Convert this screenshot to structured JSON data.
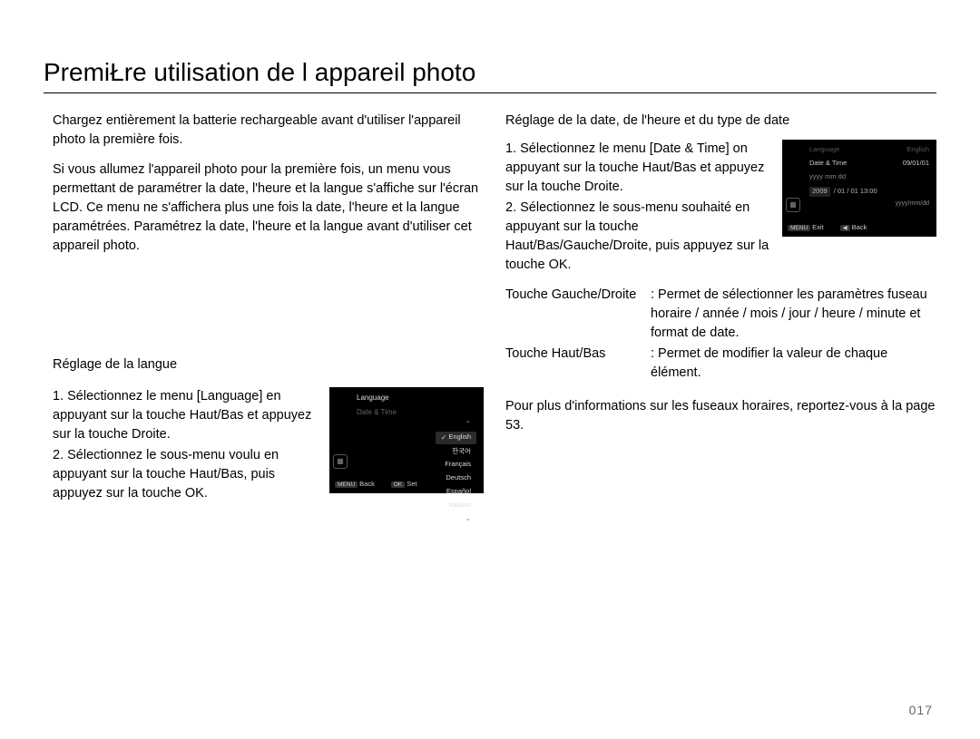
{
  "title": "PremiŁre utilisation de l appareil photo",
  "page_number": "017",
  "left": {
    "intro1": "Chargez entièrement la batterie rechargeable avant d'utiliser l'appareil photo la première fois.",
    "intro2": "Si vous allumez l'appareil photo pour la première fois, un menu vous permettant de paramétrer la date, l'heure et la langue s'affiche sur l'écran LCD. Ce menu ne s'affichera plus une fois la date, l'heure et la langue paramétrées. Paramétrez la date, l'heure et la langue avant d'utiliser cet appareil photo.",
    "subhead": "Réglage de la langue",
    "step1": "1. Sélectionnez le menu [Language] en appuyant sur la touche Haut/Bas et appuyez sur la touche Droite.",
    "step2": "2. Sélectionnez le sous-menu voulu en appuyant sur la touche Haut/Bas, puis appuyez sur la touche OK."
  },
  "right": {
    "subhead": "Réglage de la date, de l'heure et du type de date",
    "step1": "1. Sélectionnez le menu [Date & Time] on appuyant sur la touche Haut/Bas et appuyez sur la touche Droite.",
    "step2": "2. Sélectionnez le sous-menu souhaité en appuyant sur la touche Haut/Bas/Gauche/Droite, puis appuyez sur la touche OK.",
    "def1_label": "Touche Gauche/Droite",
    "def1_val": ": Permet de sélectionner les paramètres fuseau horaire / année / mois / jour / heure / minute et format de date.",
    "def2_label": "Touche Haut/Bas",
    "def2_val": ": Permet de modifier la valeur de chaque élément.",
    "closing": "Pour plus d'informations sur les fuseaux horaires, reportez-vous à la page 53."
  },
  "lcd_lang": {
    "menu_language": "Language",
    "menu_datetime": "Date & Time",
    "opts": {
      "english": "English",
      "korean": "한국어",
      "francais": "Français",
      "deutsch": "Deutsch",
      "espanol": "Español",
      "italiano": "Italiano"
    },
    "footer_back": "Back",
    "footer_set": "Set",
    "footer_menu": "MENU",
    "footer_ok": "OK"
  },
  "lcd_date": {
    "menu_language": "Language",
    "lang_value": "English",
    "menu_datetime": "Date & Time",
    "date_value": "09/01/01",
    "yyyy_label": "yyyy mm dd",
    "year": "2009",
    "rest": "/ 01 / 01  13:00",
    "fmt": "yyyy/mm/dd",
    "footer_exit": "Exit",
    "footer_back": "Back",
    "footer_menu": "MENU",
    "footer_left": "◀"
  }
}
